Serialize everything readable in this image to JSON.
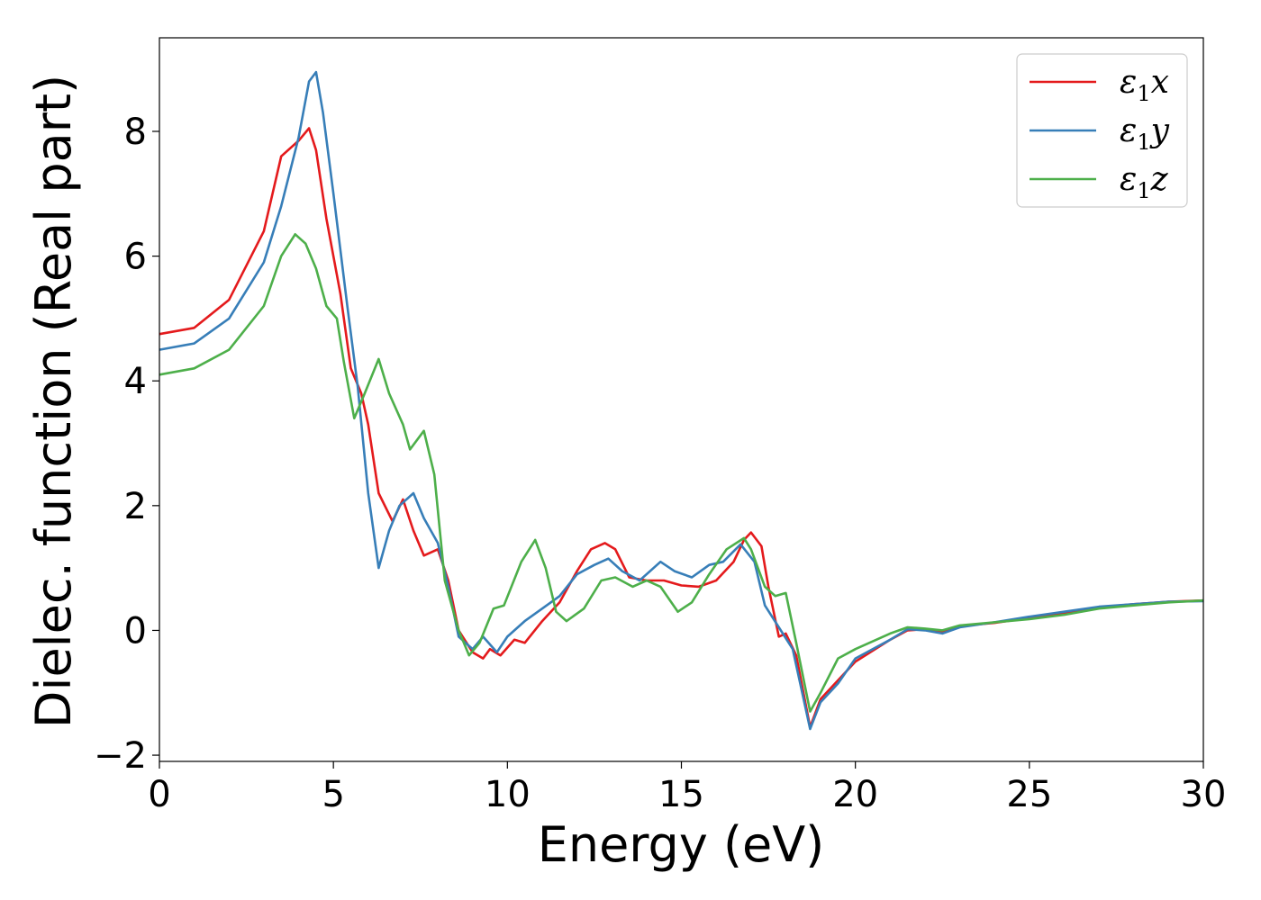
{
  "chart_data": {
    "type": "line",
    "title": "",
    "xlabel": "Energy (eV)",
    "ylabel": "Dielec. function (Real part)",
    "xlim": [
      0,
      30
    ],
    "ylim": [
      -2.1,
      9.5
    ],
    "xticks": [
      0,
      5,
      10,
      15,
      20,
      25,
      30
    ],
    "yticks": [
      -2,
      0,
      2,
      4,
      6,
      8
    ],
    "xtick_labels": [
      "0",
      "5",
      "10",
      "15",
      "20",
      "25",
      "30"
    ],
    "ytick_labels": [
      "−2",
      "0",
      "2",
      "4",
      "6",
      "8"
    ],
    "grid": false,
    "legend_position": "top-right",
    "series": [
      {
        "name": "ε1x",
        "legend": {
          "symbol": "ε",
          "sub": "1",
          "var": "x"
        },
        "color": "#e41a1c",
        "points": [
          [
            0,
            4.75
          ],
          [
            1,
            4.85
          ],
          [
            2,
            5.3
          ],
          [
            3,
            6.4
          ],
          [
            3.5,
            7.6
          ],
          [
            4,
            7.85
          ],
          [
            4.3,
            8.05
          ],
          [
            4.5,
            7.7
          ],
          [
            4.8,
            6.6
          ],
          [
            5.2,
            5.4
          ],
          [
            5.5,
            4.2
          ],
          [
            5.8,
            3.8
          ],
          [
            6.0,
            3.3
          ],
          [
            6.3,
            2.2
          ],
          [
            6.7,
            1.75
          ],
          [
            7.0,
            2.1
          ],
          [
            7.3,
            1.6
          ],
          [
            7.6,
            1.2
          ],
          [
            8.0,
            1.3
          ],
          [
            8.3,
            0.8
          ],
          [
            8.6,
            0.0
          ],
          [
            9.0,
            -0.35
          ],
          [
            9.3,
            -0.45
          ],
          [
            9.5,
            -0.3
          ],
          [
            9.8,
            -0.4
          ],
          [
            10.2,
            -0.15
          ],
          [
            10.5,
            -0.2
          ],
          [
            11,
            0.15
          ],
          [
            11.5,
            0.45
          ],
          [
            12,
            0.95
          ],
          [
            12.4,
            1.3
          ],
          [
            12.8,
            1.4
          ],
          [
            13.1,
            1.3
          ],
          [
            13.5,
            0.85
          ],
          [
            14,
            0.8
          ],
          [
            14.5,
            0.8
          ],
          [
            15,
            0.72
          ],
          [
            15.5,
            0.7
          ],
          [
            16,
            0.8
          ],
          [
            16.5,
            1.1
          ],
          [
            16.8,
            1.45
          ],
          [
            17.0,
            1.57
          ],
          [
            17.3,
            1.35
          ],
          [
            17.5,
            0.7
          ],
          [
            17.8,
            -0.1
          ],
          [
            18.0,
            -0.05
          ],
          [
            18.3,
            -0.4
          ],
          [
            18.7,
            -1.55
          ],
          [
            19.0,
            -1.1
          ],
          [
            19.5,
            -0.8
          ],
          [
            20,
            -0.5
          ],
          [
            21,
            -0.15
          ],
          [
            21.5,
            0.0
          ],
          [
            22,
            0.02
          ],
          [
            22.5,
            -0.02
          ],
          [
            23,
            0.07
          ],
          [
            24,
            0.12
          ],
          [
            25,
            0.2
          ],
          [
            26,
            0.28
          ],
          [
            27,
            0.37
          ],
          [
            28,
            0.42
          ],
          [
            29,
            0.46
          ],
          [
            30,
            0.48
          ]
        ]
      },
      {
        "name": "ε1y",
        "legend": {
          "symbol": "ε",
          "sub": "1",
          "var": "y"
        },
        "color": "#377eb8",
        "points": [
          [
            0,
            4.5
          ],
          [
            1,
            4.6
          ],
          [
            2,
            5.0
          ],
          [
            3,
            5.9
          ],
          [
            3.5,
            6.8
          ],
          [
            4,
            7.9
          ],
          [
            4.3,
            8.8
          ],
          [
            4.5,
            8.95
          ],
          [
            4.7,
            8.3
          ],
          [
            5.0,
            7.0
          ],
          [
            5.4,
            5.2
          ],
          [
            5.7,
            3.9
          ],
          [
            6.0,
            2.2
          ],
          [
            6.3,
            1.0
          ],
          [
            6.6,
            1.6
          ],
          [
            6.9,
            2.0
          ],
          [
            7.3,
            2.2
          ],
          [
            7.6,
            1.8
          ],
          [
            8.0,
            1.4
          ],
          [
            8.3,
            0.7
          ],
          [
            8.6,
            -0.1
          ],
          [
            9.0,
            -0.3
          ],
          [
            9.3,
            -0.1
          ],
          [
            9.7,
            -0.35
          ],
          [
            10.0,
            -0.1
          ],
          [
            10.5,
            0.15
          ],
          [
            11,
            0.35
          ],
          [
            11.5,
            0.55
          ],
          [
            12,
            0.9
          ],
          [
            12.5,
            1.05
          ],
          [
            12.9,
            1.15
          ],
          [
            13.3,
            0.95
          ],
          [
            13.8,
            0.8
          ],
          [
            14.4,
            1.1
          ],
          [
            14.8,
            0.95
          ],
          [
            15.3,
            0.85
          ],
          [
            15.8,
            1.05
          ],
          [
            16.2,
            1.1
          ],
          [
            16.7,
            1.38
          ],
          [
            17.1,
            1.1
          ],
          [
            17.4,
            0.4
          ],
          [
            17.8,
            0.05
          ],
          [
            18.2,
            -0.3
          ],
          [
            18.7,
            -1.58
          ],
          [
            19.0,
            -1.15
          ],
          [
            19.5,
            -0.85
          ],
          [
            20,
            -0.45
          ],
          [
            21,
            -0.15
          ],
          [
            21.5,
            0.02
          ],
          [
            22,
            0.0
          ],
          [
            22.5,
            -0.05
          ],
          [
            23,
            0.05
          ],
          [
            24,
            0.13
          ],
          [
            25,
            0.22
          ],
          [
            26,
            0.3
          ],
          [
            27,
            0.38
          ],
          [
            28,
            0.42
          ],
          [
            29,
            0.46
          ],
          [
            30,
            0.47
          ]
        ]
      },
      {
        "name": "ε1z",
        "legend": {
          "symbol": "ε",
          "sub": "1",
          "var": "z"
        },
        "color": "#4daf4a",
        "points": [
          [
            0,
            4.1
          ],
          [
            1,
            4.2
          ],
          [
            2,
            4.5
          ],
          [
            3,
            5.2
          ],
          [
            3.5,
            6.0
          ],
          [
            3.9,
            6.35
          ],
          [
            4.2,
            6.2
          ],
          [
            4.5,
            5.8
          ],
          [
            4.8,
            5.2
          ],
          [
            5.1,
            5.0
          ],
          [
            5.3,
            4.3
          ],
          [
            5.6,
            3.4
          ],
          [
            5.9,
            3.8
          ],
          [
            6.3,
            4.35
          ],
          [
            6.6,
            3.8
          ],
          [
            7.0,
            3.3
          ],
          [
            7.2,
            2.9
          ],
          [
            7.6,
            3.2
          ],
          [
            7.9,
            2.5
          ],
          [
            8.2,
            0.8
          ],
          [
            8.6,
            0.0
          ],
          [
            8.9,
            -0.4
          ],
          [
            9.2,
            -0.2
          ],
          [
            9.6,
            0.35
          ],
          [
            9.9,
            0.4
          ],
          [
            10.4,
            1.1
          ],
          [
            10.8,
            1.45
          ],
          [
            11.1,
            1.0
          ],
          [
            11.4,
            0.3
          ],
          [
            11.7,
            0.15
          ],
          [
            12.2,
            0.35
          ],
          [
            12.7,
            0.8
          ],
          [
            13.1,
            0.85
          ],
          [
            13.6,
            0.7
          ],
          [
            14.0,
            0.8
          ],
          [
            14.4,
            0.7
          ],
          [
            14.9,
            0.3
          ],
          [
            15.3,
            0.45
          ],
          [
            15.8,
            0.9
          ],
          [
            16.3,
            1.3
          ],
          [
            16.8,
            1.48
          ],
          [
            17.0,
            1.3
          ],
          [
            17.4,
            0.7
          ],
          [
            17.7,
            0.55
          ],
          [
            18.0,
            0.6
          ],
          [
            18.3,
            -0.2
          ],
          [
            18.7,
            -1.3
          ],
          [
            19.0,
            -1.0
          ],
          [
            19.5,
            -0.45
          ],
          [
            20,
            -0.3
          ],
          [
            21,
            -0.05
          ],
          [
            21.5,
            0.05
          ],
          [
            22,
            0.03
          ],
          [
            22.5,
            0.0
          ],
          [
            23,
            0.08
          ],
          [
            24,
            0.13
          ],
          [
            25,
            0.18
          ],
          [
            26,
            0.25
          ],
          [
            27,
            0.35
          ],
          [
            28,
            0.4
          ],
          [
            29,
            0.45
          ],
          [
            30,
            0.48
          ]
        ]
      }
    ]
  }
}
